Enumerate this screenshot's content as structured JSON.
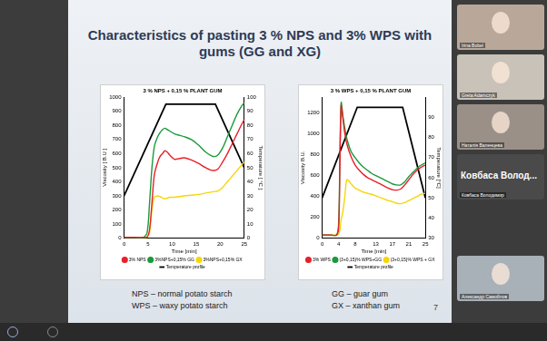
{
  "slide": {
    "title": "Characteristics of pasting 3 % NPS and 3% WPS with gums (GG and XG)",
    "notes_left": [
      "NPS – normal potato starch",
      "WPS – waxy potato starch"
    ],
    "notes_right": [
      "GG – guar gum",
      "GX – xanthan gum"
    ],
    "page_number": 7
  },
  "participants": [
    {
      "name": "Irina Bobel",
      "color": "#b9a89a"
    },
    {
      "name": "Greta Adamczyk",
      "color": "#c8c2b8"
    },
    {
      "name": "Наталія Валенцева",
      "color": "#9a9088"
    },
    {
      "name": "Ковбаса Володимир",
      "caption": "Ковбаса Волод...",
      "color": "#4a4a4a"
    },
    {
      "name": "Александр Самойлов",
      "color": "#a8b0b8"
    }
  ],
  "chart_data": [
    {
      "type": "line",
      "title": "3 % NPS + 0,15 % PLANT GUM",
      "x_label": "Time [min]",
      "y_label": "Viscosity [ B.U ]",
      "y2_label": "Temperature [ °C ]",
      "xlim": [
        0,
        25
      ],
      "xticks": [
        0,
        5,
        10,
        15,
        20,
        25
      ],
      "ylim": [
        0,
        1000
      ],
      "yticks": [
        0,
        100,
        200,
        300,
        400,
        500,
        600,
        700,
        800,
        900,
        1000
      ],
      "y2lim": [
        0,
        100
      ],
      "y2ticks": [
        0,
        10,
        20,
        30,
        40,
        50,
        60,
        70,
        80,
        90,
        100
      ],
      "grid": false,
      "legend": "bottom",
      "series": [
        {
          "name": "3% NPS",
          "color": "#e8202a",
          "x": [
            0,
            2,
            4,
            4.8,
            5.3,
            5.8,
            6.3,
            7,
            7.5,
            8,
            8.5,
            9,
            9.5,
            10.5,
            11.5,
            12.5,
            14,
            15.5,
            17,
            18.5,
            19.5,
            20.5,
            21.5,
            22.5,
            23.5,
            24.5,
            25
          ],
          "values": [
            5,
            5,
            5,
            8,
            60,
            250,
            450,
            540,
            580,
            600,
            620,
            610,
            590,
            560,
            565,
            570,
            555,
            530,
            500,
            480,
            490,
            540,
            600,
            670,
            740,
            810,
            840
          ]
        },
        {
          "name": "3%NPS+0,15% GG",
          "color": "#1a9a3a",
          "x": [
            0,
            2,
            4,
            4.8,
            5.3,
            5.8,
            6.3,
            7,
            7.5,
            8,
            8.5,
            9,
            9.5,
            10.5,
            11.5,
            12.5,
            14,
            15.5,
            17,
            18.5,
            19.5,
            20.5,
            21.5,
            22.5,
            23.5,
            24.5,
            25
          ],
          "values": [
            5,
            5,
            5,
            40,
            250,
            500,
            650,
            720,
            750,
            770,
            780,
            770,
            760,
            740,
            730,
            720,
            700,
            660,
            610,
            580,
            590,
            640,
            720,
            800,
            880,
            940,
            960
          ]
        },
        {
          "name": "3%NPS+0,15% GX",
          "color": "#f5d60a",
          "x": [
            0,
            2,
            4,
            4.8,
            5.3,
            5.8,
            6.3,
            7,
            7.5,
            8,
            8.5,
            9,
            9.5,
            10.5,
            11.5,
            12.5,
            14,
            15.5,
            17,
            18.5,
            19.5,
            20.5,
            21.5,
            22.5,
            23.5,
            24.5,
            25
          ],
          "values": [
            5,
            5,
            5,
            8,
            40,
            200,
            290,
            300,
            295,
            285,
            280,
            285,
            290,
            290,
            295,
            300,
            305,
            310,
            320,
            330,
            335,
            360,
            400,
            440,
            480,
            520,
            540
          ]
        },
        {
          "name": "Temperature profile",
          "color": "#000000",
          "axis": "y2",
          "x": [
            0,
            8.7,
            19,
            25
          ],
          "values": [
            30,
            95,
            95,
            50
          ]
        }
      ]
    },
    {
      "type": "line",
      "title": "3 % WPS + 0,15 % PLANT GUM",
      "x_label": "Time [min]",
      "y_label": "Viscosity B.U.",
      "y2_label": "Temperature [°C]",
      "xlim": [
        0,
        25
      ],
      "xticks": [
        0,
        4,
        8,
        13,
        17,
        21,
        25
      ],
      "ylim": [
        0,
        1350
      ],
      "yticks": [
        0,
        200,
        400,
        600,
        800,
        1000,
        1200
      ],
      "y2lim": [
        30,
        100
      ],
      "y2ticks": [
        30,
        40,
        50,
        60,
        70,
        80,
        90
      ],
      "grid": false,
      "legend": "bottom",
      "series": [
        {
          "name": "3% WPS",
          "color": "#e8202a",
          "x": [
            0,
            2,
            3.5,
            4,
            4.3,
            4.6,
            5,
            5.5,
            6,
            7,
            8,
            9,
            10,
            11,
            12,
            13,
            14,
            15,
            16,
            17,
            18,
            19,
            20,
            21,
            22,
            23,
            24,
            25
          ],
          "values": [
            30,
            30,
            30,
            100,
            700,
            1270,
            1150,
            1000,
            900,
            780,
            700,
            650,
            610,
            580,
            560,
            540,
            520,
            500,
            480,
            465,
            460,
            470,
            510,
            560,
            610,
            650,
            680,
            700
          ]
        },
        {
          "name": "(3+0,15)% WPS+GG",
          "color": "#1a9a3a",
          "x": [
            0,
            2,
            3.5,
            4,
            4.3,
            4.6,
            5,
            5.5,
            6,
            7,
            8,
            9,
            10,
            11,
            12,
            13,
            14,
            15,
            16,
            17,
            18,
            19,
            20,
            21,
            22,
            23,
            24,
            25
          ],
          "values": [
            30,
            30,
            30,
            150,
            800,
            1300,
            1180,
            1050,
            950,
            830,
            770,
            720,
            680,
            650,
            620,
            600,
            580,
            560,
            540,
            520,
            510,
            510,
            540,
            590,
            630,
            670,
            700,
            720
          ]
        },
        {
          "name": "(3+0,15)% WPS + GX",
          "color": "#f5d60a",
          "x": [
            0,
            2,
            3.5,
            4,
            4.3,
            4.6,
            5,
            5.5,
            6,
            7,
            8,
            9,
            10,
            11,
            12,
            13,
            14,
            15,
            16,
            17,
            18,
            19,
            20,
            21,
            22,
            23,
            24,
            25
          ],
          "values": [
            30,
            30,
            30,
            40,
            80,
            180,
            250,
            400,
            560,
            520,
            480,
            460,
            440,
            430,
            420,
            405,
            390,
            375,
            360,
            350,
            335,
            330,
            340,
            360,
            380,
            400,
            420,
            430
          ]
        },
        {
          "name": "Temperature profile",
          "color": "#000000",
          "axis": "y2",
          "x": [
            0,
            8.5,
            19.5,
            25
          ],
          "values": [
            50,
            95,
            95,
            50
          ]
        }
      ]
    }
  ]
}
